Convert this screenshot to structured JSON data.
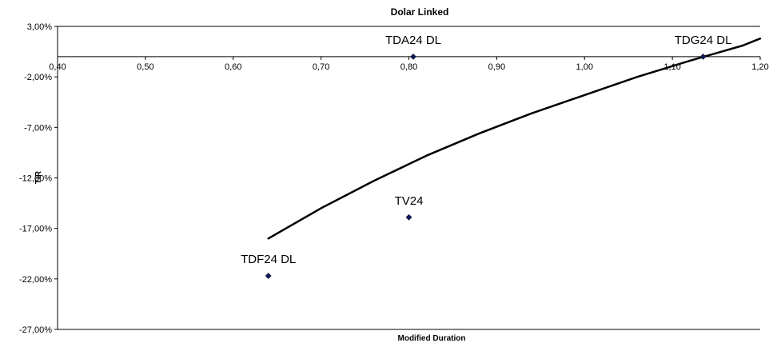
{
  "chart_data": {
    "type": "scatter",
    "title": "Dolar Linked",
    "xlabel": "Modified Duration",
    "ylabel": "TIR",
    "xlim": [
      0.4,
      1.2
    ],
    "ylim": [
      -27,
      3
    ],
    "x_ticks": [
      "0,40",
      "0,50",
      "0,60",
      "0,70",
      "0,80",
      "0,90",
      "1,00",
      "1,10",
      "1,20"
    ],
    "x_tick_values": [
      0.4,
      0.5,
      0.6,
      0.7,
      0.8,
      0.9,
      1.0,
      1.1,
      1.2
    ],
    "y_ticks": [
      "3,00%",
      "-2,00%",
      "-7,00%",
      "-12,00%",
      "-17,00%",
      "-22,00%",
      "-27,00%"
    ],
    "y_tick_values": [
      3,
      -2,
      -7,
      -12,
      -17,
      -22,
      -27
    ],
    "points": [
      {
        "label": "TDA24 DL",
        "x": 0.805,
        "y": 0.0
      },
      {
        "label": "TDG24 DL",
        "x": 1.135,
        "y": 0.0
      },
      {
        "label": "TV24",
        "x": 0.8,
        "y": -15.9
      },
      {
        "label": "TDF24 DL",
        "x": 0.64,
        "y": -21.7
      }
    ],
    "trendline": {
      "x": [
        0.64,
        0.7,
        0.76,
        0.82,
        0.88,
        0.94,
        1.0,
        1.06,
        1.12,
        1.18,
        1.21
      ],
      "y": [
        -18.0,
        -15.0,
        -12.3,
        -9.8,
        -7.6,
        -5.6,
        -3.8,
        -2.0,
        -0.4,
        1.1,
        1.8
      ]
    },
    "colors": {
      "marker": "#0d1a5c",
      "trendline": "#000000",
      "axis": "#000000"
    },
    "grid": false,
    "legend": "none"
  }
}
